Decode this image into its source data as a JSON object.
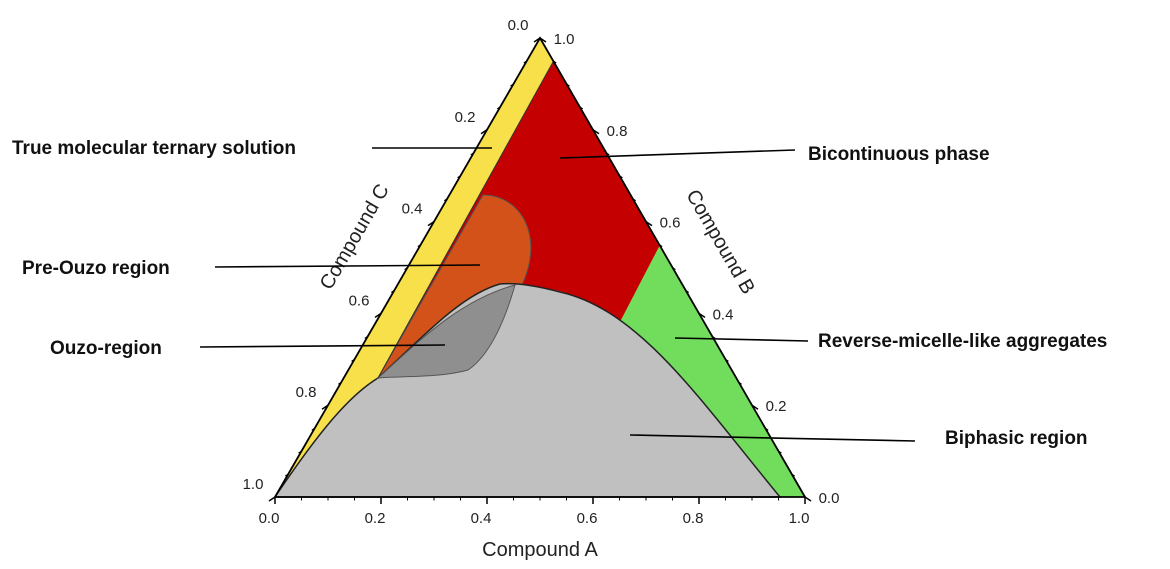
{
  "axes": {
    "a": {
      "title": "Compound A",
      "ticks": [
        "0.0",
        "0.2",
        "0.4",
        "0.6",
        "0.8",
        "1.0"
      ]
    },
    "b": {
      "title": "Compound B",
      "ticks": [
        "0.0",
        "0.2",
        "0.4",
        "0.6",
        "0.8",
        "1.0"
      ]
    },
    "c": {
      "title": "Compound C",
      "ticks": [
        "0.0",
        "0.2",
        "0.4",
        "0.6",
        "0.8",
        "1.0"
      ]
    }
  },
  "regions": {
    "true_solution": "True molecular ternary solution",
    "pre_ouzo": "Pre-Ouzo region",
    "ouzo": "Ouzo-region",
    "bicontinuous": "Bicontinuous phase",
    "reverse_micelle": "Reverse-micelle-like aggregates",
    "biphasic": "Biphasic region"
  }
}
